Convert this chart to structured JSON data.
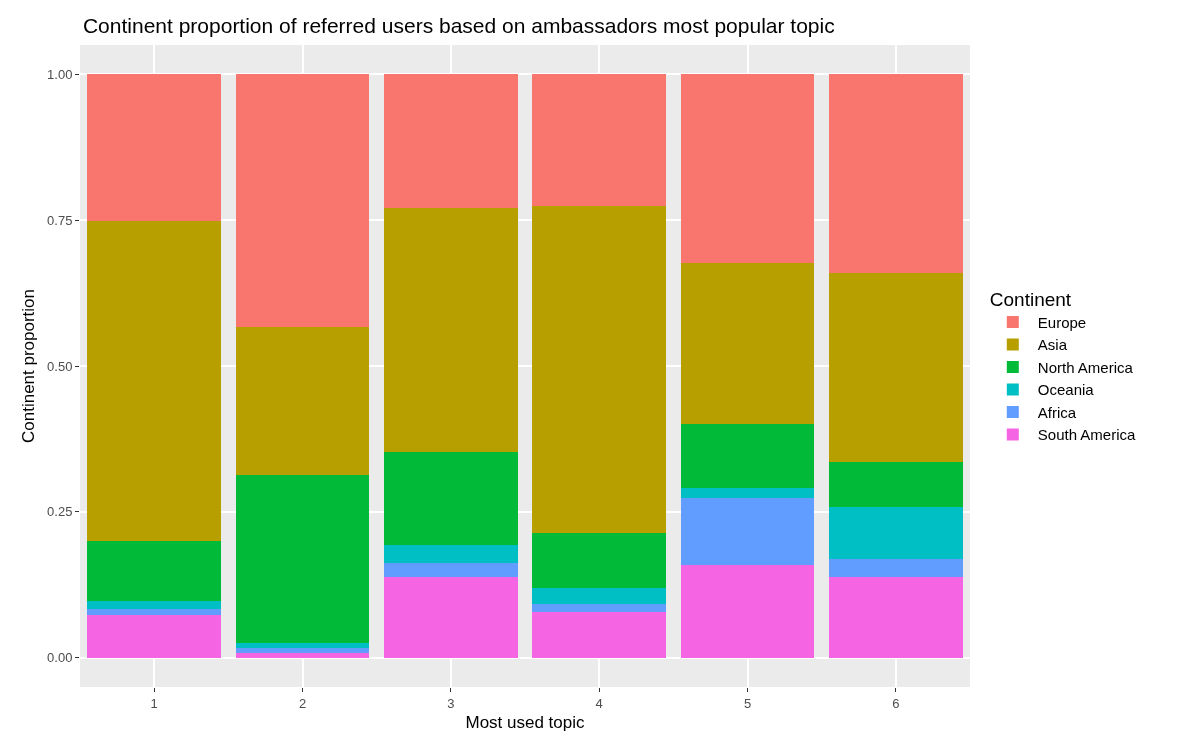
{
  "chart_data": {
    "type": "bar",
    "title": "Continent proportion of referred users based on ambassadors most popular topic",
    "xlabel": "Most used topic",
    "ylabel": "Continent proportion",
    "legend_title": "Continent",
    "categories": [
      "1",
      "2",
      "3",
      "4",
      "5",
      "6"
    ],
    "stacked": true,
    "series": [
      {
        "name": "South America",
        "color": "#f564e3",
        "values": [
          0.074,
          0.009,
          0.138,
          0.079,
          0.159,
          0.138
        ]
      },
      {
        "name": "Africa",
        "color": "#619cff",
        "values": [
          0.01,
          0.007,
          0.024,
          0.013,
          0.115,
          0.031
        ]
      },
      {
        "name": "Oceania",
        "color": "#00bfc4",
        "values": [
          0.013,
          0.01,
          0.031,
          0.028,
          0.017,
          0.089
        ]
      },
      {
        "name": "North America",
        "color": "#00ba38",
        "values": [
          0.104,
          0.287,
          0.159,
          0.094,
          0.11,
          0.078
        ]
      },
      {
        "name": "Asia",
        "color": "#b79f00",
        "values": [
          0.548,
          0.253,
          0.419,
          0.56,
          0.275,
          0.323
        ]
      },
      {
        "name": "Europe",
        "color": "#f8766d",
        "values": [
          0.251,
          0.434,
          0.229,
          0.226,
          0.324,
          0.341
        ]
      }
    ],
    "ylim": [
      -0.05,
      1.05
    ],
    "yticks": [
      {
        "value": 0,
        "label": "0.00"
      },
      {
        "value": 0.25,
        "label": "0.25"
      },
      {
        "value": 0.5,
        "label": "0.50"
      },
      {
        "value": 0.75,
        "label": "0.75"
      },
      {
        "value": 1,
        "label": "1.00"
      }
    ],
    "grid": true,
    "legend": "right"
  }
}
